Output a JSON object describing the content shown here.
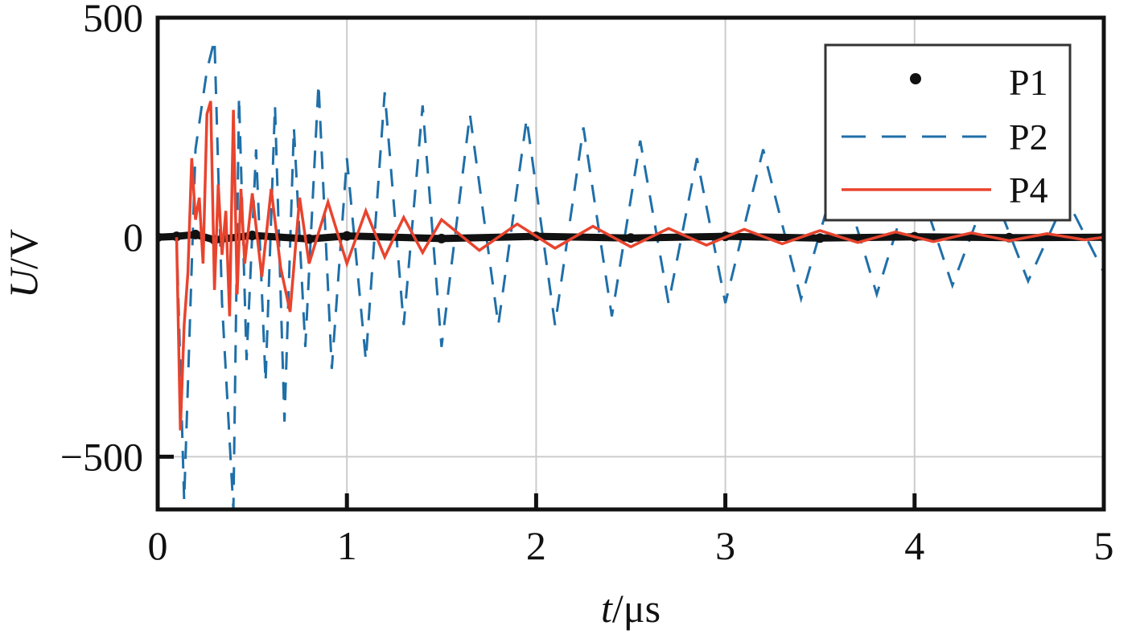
{
  "chart_data": {
    "type": "line",
    "xlabel": {
      "var": "t",
      "unit": "/μs"
    },
    "ylabel": {
      "var": "U",
      "unit": "/V"
    },
    "xlim": [
      0,
      5
    ],
    "ylim": [
      -620,
      500
    ],
    "xticks": [
      0,
      1,
      2,
      3,
      4,
      5
    ],
    "yticks": [
      -500,
      0,
      500
    ],
    "xtick_labels": [
      "0",
      "1",
      "2",
      "3",
      "4",
      "5"
    ],
    "ytick_labels": [
      "−500",
      "0",
      "500"
    ],
    "grid": true,
    "legend_position": "top-right",
    "colors": {
      "P1": "#111111",
      "P2": "#1f6fa8",
      "P4": "#e8442e",
      "grid": "#cccccc",
      "frame": "#111111"
    },
    "series": [
      {
        "name": "P1",
        "style": "dotted-markers",
        "x": [
          0,
          0.1,
          0.2,
          0.3,
          0.5,
          0.8,
          1.0,
          1.5,
          2.0,
          2.5,
          3.0,
          3.5,
          4.0,
          4.5,
          5.0
        ],
        "y": [
          0,
          2,
          6,
          -6,
          4,
          -4,
          3,
          -3,
          2,
          -2,
          2,
          -2,
          1,
          -1,
          0
        ]
      },
      {
        "name": "P2",
        "style": "dashed",
        "x": [
          0.1,
          0.12,
          0.14,
          0.2,
          0.26,
          0.3,
          0.34,
          0.4,
          0.43,
          0.47,
          0.52,
          0.57,
          0.62,
          0.67,
          0.72,
          0.78,
          0.85,
          0.92,
          1.0,
          1.1,
          1.2,
          1.3,
          1.4,
          1.5,
          1.65,
          1.8,
          1.95,
          2.1,
          2.25,
          2.4,
          2.55,
          2.7,
          2.85,
          3.0,
          3.2,
          3.4,
          3.6,
          3.8,
          4.0,
          4.2,
          4.4,
          4.6,
          4.8,
          5.0
        ],
        "y": [
          0,
          -300,
          -600,
          200,
          380,
          450,
          -150,
          -620,
          320,
          -280,
          200,
          -330,
          300,
          -420,
          250,
          -250,
          350,
          -300,
          180,
          -280,
          330,
          -200,
          300,
          -250,
          280,
          -200,
          270,
          -200,
          250,
          -180,
          220,
          -150,
          180,
          -150,
          200,
          -140,
          160,
          -130,
          150,
          -110,
          120,
          -100,
          90,
          -80
        ]
      },
      {
        "name": "P4",
        "style": "solid",
        "x": [
          0.1,
          0.12,
          0.14,
          0.16,
          0.18,
          0.2,
          0.22,
          0.24,
          0.26,
          0.28,
          0.3,
          0.32,
          0.34,
          0.36,
          0.38,
          0.4,
          0.42,
          0.44,
          0.46,
          0.5,
          0.55,
          0.6,
          0.65,
          0.7,
          0.75,
          0.8,
          0.9,
          1.0,
          1.1,
          1.2,
          1.3,
          1.4,
          1.5,
          1.7,
          1.9,
          2.1,
          2.3,
          2.5,
          2.7,
          2.9,
          3.1,
          3.3,
          3.5,
          3.7,
          3.9,
          4.1,
          4.3,
          4.5,
          4.7,
          4.9,
          5.0
        ],
        "y": [
          0,
          -440,
          -200,
          -80,
          180,
          40,
          90,
          -60,
          280,
          310,
          -120,
          120,
          -40,
          60,
          -180,
          290,
          -130,
          110,
          -60,
          100,
          -90,
          110,
          -70,
          -170,
          90,
          -60,
          80,
          -60,
          60,
          -45,
          45,
          -35,
          40,
          -30,
          30,
          -25,
          25,
          -22,
          20,
          -18,
          18,
          -15,
          15,
          -12,
          12,
          -10,
          10,
          -8,
          8,
          -6,
          0
        ]
      }
    ]
  }
}
